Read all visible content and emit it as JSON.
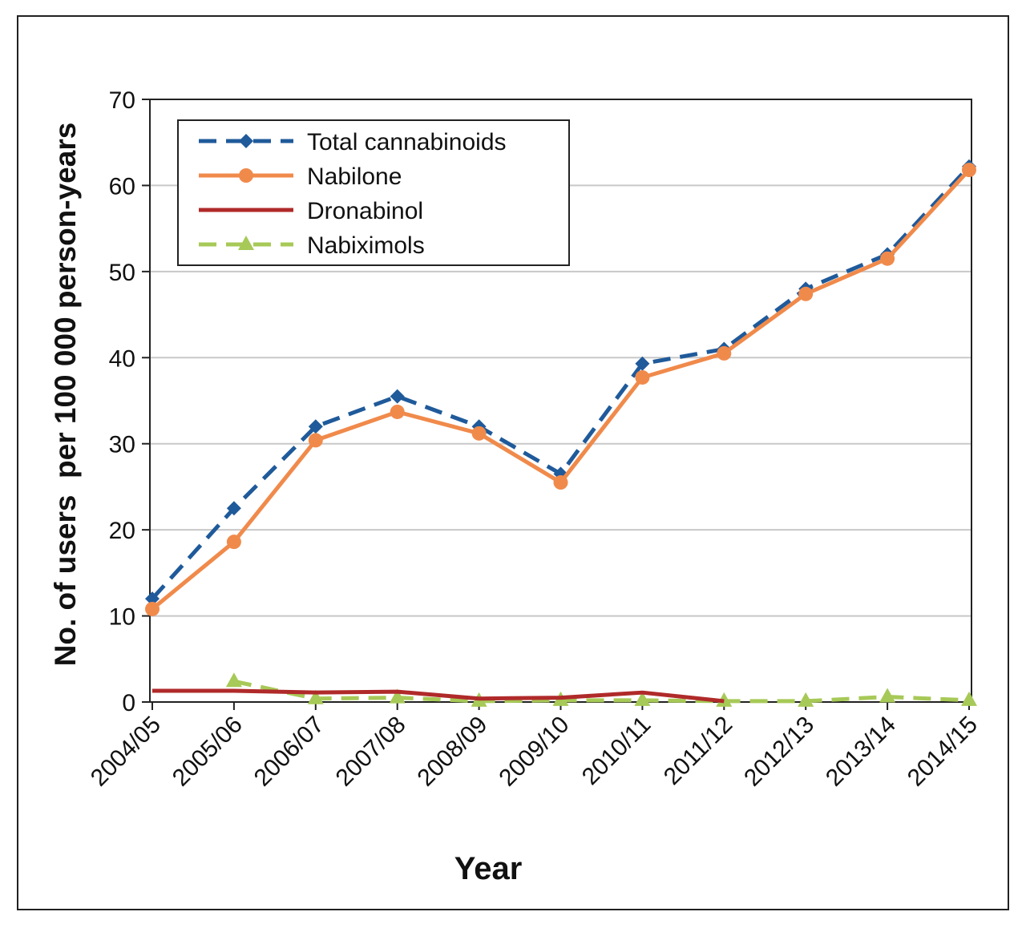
{
  "chart_data": {
    "type": "line",
    "title": "",
    "xlabel": "Year",
    "ylabel": "No. of users  per 100 000 person-years",
    "ylim": [
      0,
      70
    ],
    "yticks": [
      0,
      10,
      20,
      30,
      40,
      50,
      60,
      70
    ],
    "grid": "horizontal",
    "legend_position": "top-left",
    "categories": [
      "2004/05",
      "2005/06",
      "2006/07",
      "2007/08",
      "2008/09",
      "2009/10",
      "2010/11",
      "2011/12",
      "2012/13",
      "2013/14",
      "2014/15"
    ],
    "series": [
      {
        "name": "Total cannabinoids",
        "color": "#1f5a9a",
        "style": "dashed",
        "marker": "diamond",
        "values": [
          12.0,
          22.5,
          32.0,
          35.5,
          32.0,
          26.5,
          39.3,
          41.0,
          48.0,
          52.0,
          62.2
        ]
      },
      {
        "name": "Nabilone",
        "color": "#f08a4b",
        "style": "solid",
        "marker": "circle",
        "values": [
          10.8,
          18.6,
          30.4,
          33.7,
          31.2,
          25.5,
          37.7,
          40.5,
          47.4,
          51.5,
          61.8
        ]
      },
      {
        "name": "Dronabinol",
        "color": "#b02a2a",
        "style": "solid",
        "marker": "none",
        "values": [
          1.3,
          1.3,
          1.1,
          1.2,
          0.4,
          0.5,
          1.1,
          0.1,
          null,
          null,
          null
        ]
      },
      {
        "name": "Nabiximols",
        "color": "#a7c957",
        "style": "dashed",
        "marker": "triangle",
        "values": [
          null,
          2.4,
          0.4,
          0.5,
          0.1,
          0.2,
          0.2,
          0.1,
          0.1,
          0.6,
          0.2
        ]
      }
    ]
  }
}
